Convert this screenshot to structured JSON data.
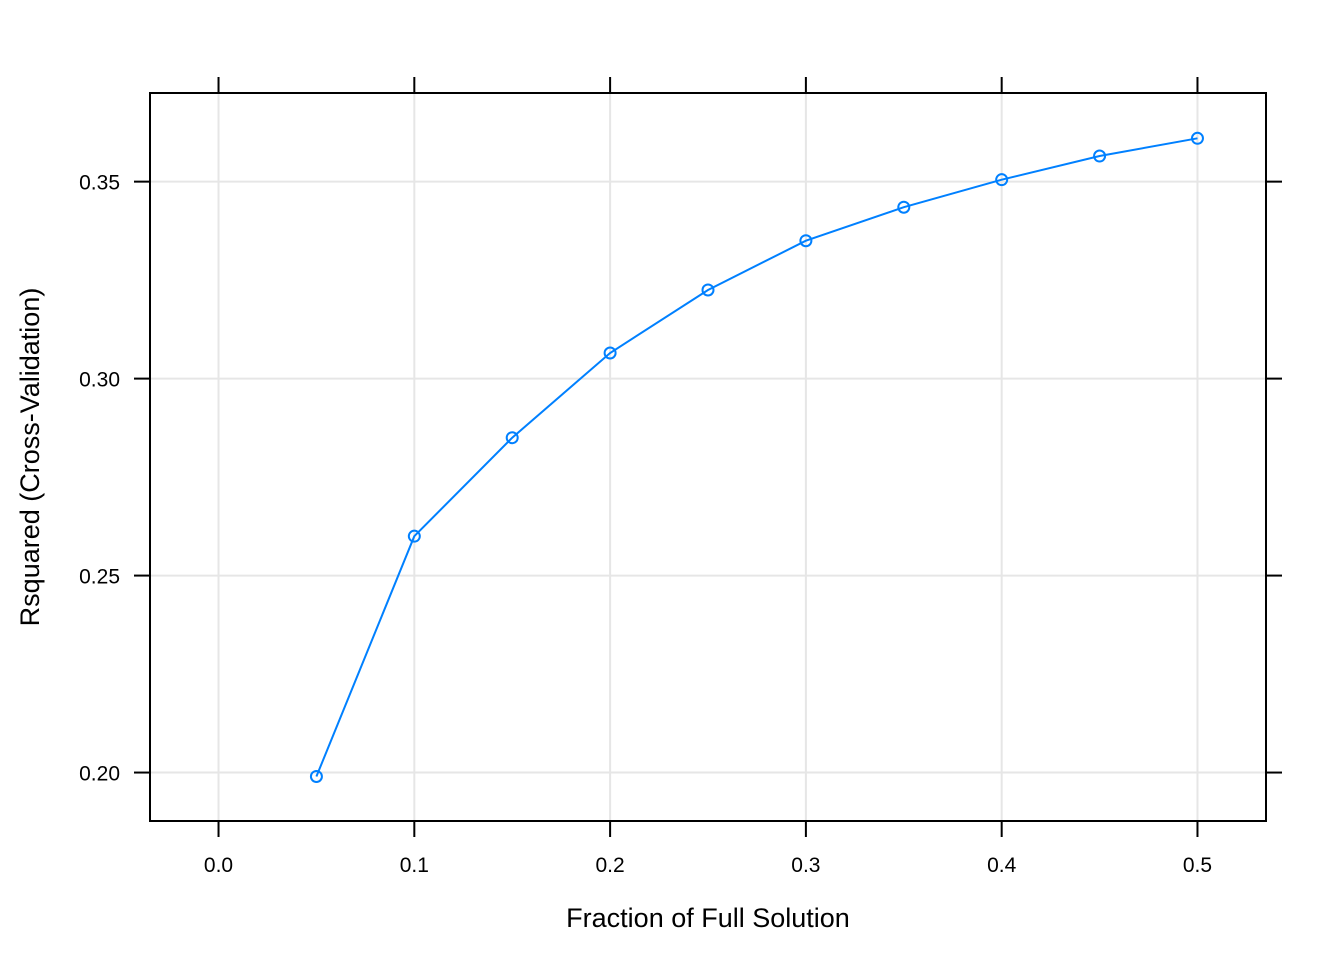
{
  "chart_data": {
    "type": "line",
    "xlabel": "Fraction of Full Solution",
    "ylabel": "Rsquared (Cross-Validation)",
    "xlim": [
      -0.035,
      0.535
    ],
    "ylim": [
      0.1877,
      0.3725
    ],
    "x_ticks": [
      0.0,
      0.1,
      0.2,
      0.3,
      0.4,
      0.5
    ],
    "x_tick_labels": [
      "0.0",
      "0.1",
      "0.2",
      "0.3",
      "0.4",
      "0.5"
    ],
    "y_ticks": [
      0.2,
      0.25,
      0.3,
      0.35
    ],
    "y_tick_labels": [
      "0.20",
      "0.25",
      "0.30",
      "0.35"
    ],
    "grid": true,
    "series": [
      {
        "color": "#0080ff",
        "marker": "open-circle",
        "x": [
          0.05,
          0.1,
          0.15,
          0.2,
          0.25,
          0.3,
          0.35,
          0.4,
          0.45,
          0.5
        ],
        "y": [
          0.199,
          0.26,
          0.285,
          0.3065,
          0.3225,
          0.335,
          0.3435,
          0.3505,
          0.3565,
          0.361
        ]
      }
    ]
  }
}
